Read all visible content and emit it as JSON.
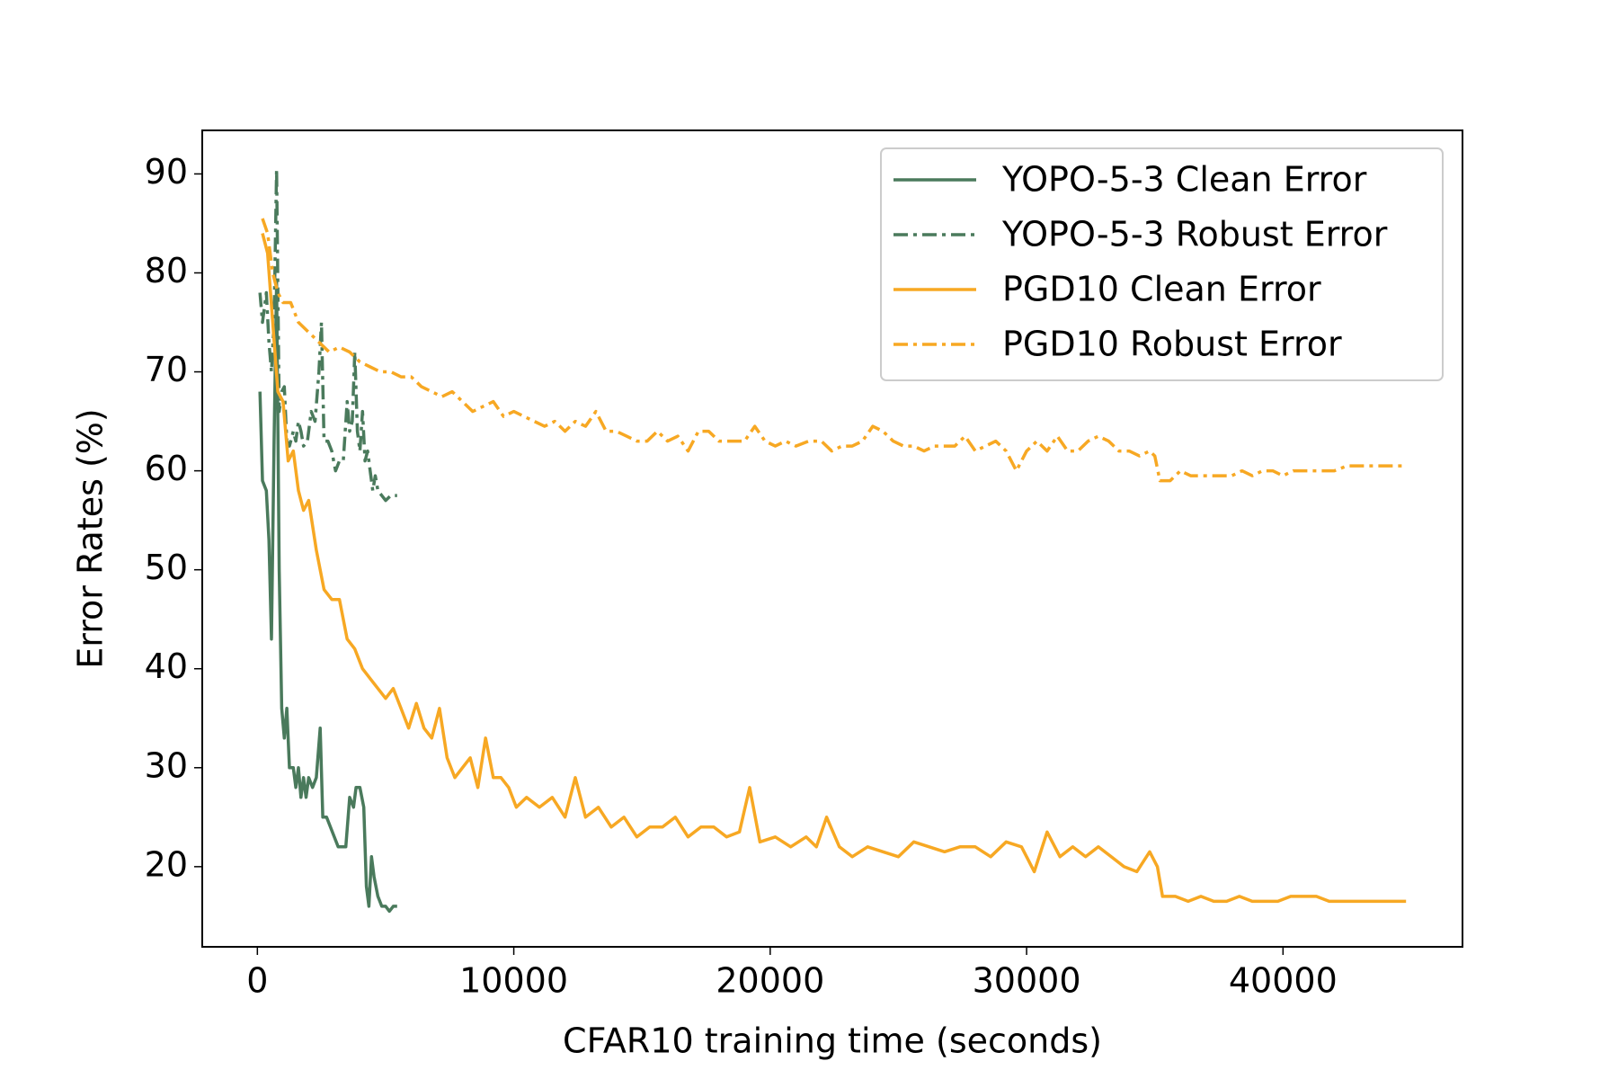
{
  "chart_data": {
    "type": "line",
    "xlabel": "CFAR10 training time (seconds)",
    "ylabel": "Error Rates (%)",
    "xlim": [
      -2150,
      47000
    ],
    "ylim": [
      11.9,
      94.4
    ],
    "xticks": [
      0,
      10000,
      20000,
      30000,
      40000
    ],
    "yticks": [
      20,
      30,
      40,
      50,
      60,
      70,
      80,
      90
    ],
    "grid": false,
    "legend": "upper right",
    "series": [
      {
        "name": "YOPO-5-3 Clean Error",
        "color": "#4a7a5c",
        "linestyle": "solid",
        "x": [
          100,
          200,
          350,
          450,
          550,
          650,
          750,
          850,
          950,
          1050,
          1150,
          1250,
          1400,
          1500,
          1600,
          1700,
          1800,
          1900,
          2000,
          2150,
          2300,
          2450,
          2550,
          2700,
          2850,
          3000,
          3150,
          3300,
          3450,
          3600,
          3750,
          3850,
          4000,
          4150,
          4250,
          4350,
          4450,
          4550,
          4700,
          4850,
          5000,
          5150,
          5300,
          5450
        ],
        "values": [
          68,
          59,
          58,
          53,
          43,
          63,
          79,
          50,
          36,
          33,
          36,
          30,
          30,
          28,
          30,
          27,
          29,
          27,
          29,
          28,
          29,
          34,
          25,
          25,
          24,
          23,
          22,
          22,
          22,
          27,
          26,
          28,
          28,
          26,
          18,
          16,
          21,
          19,
          17,
          16,
          16,
          15.5,
          16,
          16
        ]
      },
      {
        "name": "YOPO-5-3 Robust Error",
        "color": "#4a7a5c",
        "linestyle": "dashdot",
        "x": [
          100,
          200,
          350,
          450,
          550,
          650,
          750,
          850,
          950,
          1050,
          1150,
          1250,
          1400,
          1500,
          1600,
          1700,
          1800,
          1950,
          2100,
          2250,
          2400,
          2500,
          2600,
          2750,
          2900,
          3050,
          3200,
          3350,
          3500,
          3600,
          3700,
          3800,
          3900,
          4000,
          4100,
          4200,
          4300,
          4400,
          4500,
          4600,
          4700,
          4850,
          5000,
          5200,
          5450
        ],
        "values": [
          78,
          75,
          78,
          73,
          70,
          75,
          90.5,
          66,
          68,
          68.5,
          63,
          62.5,
          64,
          63,
          65,
          64,
          62.5,
          63,
          66,
          65,
          70,
          75,
          63,
          63,
          62,
          60,
          61,
          61,
          67,
          64,
          65,
          72,
          64,
          62,
          66,
          61,
          62,
          60,
          58,
          59.5,
          58,
          57.5,
          57,
          57.5,
          57.5
        ]
      },
      {
        "name": "PGD10 Clean Error",
        "color": "#f7a823",
        "linestyle": "solid",
        "x": [
          200,
          400,
          600,
          800,
          1000,
          1200,
          1400,
          1600,
          1800,
          2000,
          2300,
          2600,
          2900,
          3200,
          3500,
          3800,
          4100,
          4400,
          4700,
          5000,
          5300,
          5600,
          5900,
          6200,
          6500,
          6800,
          7100,
          7400,
          7700,
          8000,
          8300,
          8600,
          8900,
          9200,
          9500,
          9800,
          10100,
          10500,
          11000,
          11500,
          12000,
          12400,
          12800,
          13300,
          13800,
          14300,
          14800,
          15300,
          15800,
          16300,
          16800,
          17300,
          17800,
          18300,
          18800,
          19200,
          19600,
          20200,
          20800,
          21400,
          21800,
          22200,
          22700,
          23200,
          23800,
          24400,
          25000,
          25600,
          26200,
          26800,
          27400,
          28000,
          28600,
          29200,
          29800,
          30300,
          30800,
          31300,
          31800,
          32300,
          32800,
          33300,
          33800,
          34300,
          34800,
          35100,
          35300,
          35800,
          36300,
          36800,
          37300,
          37800,
          38300,
          38800,
          39300,
          39800,
          40300,
          40800,
          41300,
          41800,
          42300,
          42800,
          43300,
          43800,
          44300,
          44800
        ],
        "values": [
          84,
          82,
          75,
          68,
          67,
          61,
          62,
          58,
          56,
          57,
          52,
          48,
          47,
          47,
          43,
          42,
          40,
          39,
          38,
          37,
          38,
          36,
          34,
          36.5,
          34,
          33,
          36,
          31,
          29,
          30,
          31,
          28,
          33,
          29,
          29,
          28,
          26,
          27,
          26,
          27,
          25,
          29,
          25,
          26,
          24,
          25,
          23,
          24,
          24,
          25,
          23,
          24,
          24,
          23,
          23.5,
          28,
          22.5,
          23,
          22,
          23,
          22,
          25,
          22,
          21,
          22,
          21.5,
          21,
          22.5,
          22,
          21.5,
          22,
          22,
          21,
          22.5,
          22,
          19.5,
          23.5,
          21,
          22,
          21,
          22,
          21,
          20,
          19.5,
          21.5,
          20,
          17,
          17,
          16.5,
          17,
          16.5,
          16.5,
          17,
          16.5,
          16.5,
          16.5,
          17,
          17,
          17,
          16.5,
          16.5,
          16.5,
          16.5,
          16.5,
          16.5,
          16.5
        ]
      },
      {
        "name": "PGD10 Robust Error",
        "color": "#f7a823",
        "linestyle": "dashdot",
        "x": [
          200,
          400,
          600,
          800,
          1000,
          1300,
          1600,
          2000,
          2400,
          2800,
          3200,
          3600,
          4000,
          4400,
          4800,
          5200,
          5600,
          6000,
          6400,
          6800,
          7200,
          7600,
          8000,
          8400,
          8800,
          9200,
          9600,
          10000,
          10400,
          10800,
          11200,
          11600,
          12000,
          12400,
          12800,
          13200,
          13600,
          14000,
          14400,
          14800,
          15200,
          15600,
          16000,
          16400,
          16800,
          17200,
          17600,
          18000,
          18500,
          19000,
          19400,
          19800,
          20200,
          20600,
          21000,
          21500,
          22000,
          22400,
          22800,
          23200,
          23600,
          24000,
          24400,
          24800,
          25200,
          25600,
          26000,
          26400,
          26800,
          27200,
          27600,
          28000,
          28400,
          28800,
          29200,
          29600,
          30000,
          30400,
          30800,
          31200,
          31600,
          32000,
          32400,
          32800,
          33200,
          33600,
          34000,
          34400,
          34800,
          35000,
          35200,
          35600,
          36000,
          36400,
          36800,
          37200,
          37600,
          38000,
          38400,
          38800,
          39200,
          39600,
          40000,
          40400,
          40800,
          41200,
          41600,
          42000,
          42500,
          43000,
          43500,
          44000,
          44500,
          44800
        ],
        "values": [
          85.5,
          84,
          80,
          78,
          77,
          77,
          75,
          74,
          73,
          72,
          72.5,
          72,
          71,
          70.5,
          70,
          70,
          69.5,
          69.5,
          68.5,
          68,
          67.5,
          68,
          67,
          66,
          66.5,
          67,
          65.5,
          66,
          65.5,
          65,
          64.5,
          65,
          64,
          65,
          64.5,
          66,
          64,
          64,
          63.5,
          63,
          63,
          64,
          63,
          63.5,
          62,
          64,
          64,
          63,
          63,
          63,
          64.5,
          63,
          62.5,
          63,
          62.5,
          63,
          63,
          62,
          62.5,
          62.5,
          63,
          64.5,
          64,
          63,
          62.5,
          62.5,
          62,
          62.5,
          62.5,
          62.5,
          63.5,
          62,
          62.5,
          63,
          62,
          60,
          62,
          63,
          62,
          63.5,
          62,
          62,
          63,
          63.5,
          63,
          62,
          62,
          61.5,
          62,
          61.5,
          59,
          59,
          60,
          59.5,
          59.5,
          59.5,
          59.5,
          59.5,
          60,
          59.5,
          60,
          60,
          59.5,
          60,
          60,
          60,
          60,
          60,
          60.5,
          60.5,
          60.5,
          60.5,
          60.5,
          60.5
        ]
      }
    ]
  }
}
